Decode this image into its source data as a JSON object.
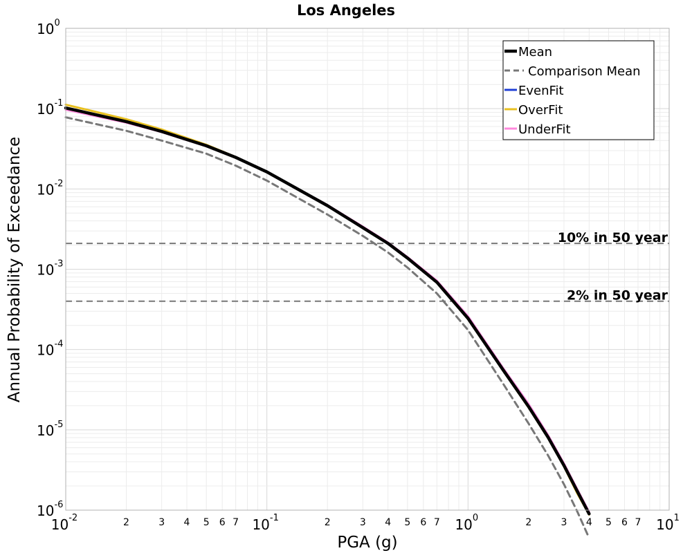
{
  "chart_data": {
    "type": "line",
    "title": "Los Angeles",
    "xlabel": "PGA (g)",
    "ylabel": "Annual Probability of Exceedance",
    "x_scale": "log",
    "y_scale": "log",
    "xlim": [
      0.01,
      10
    ],
    "ylim": [
      1e-06,
      1
    ],
    "grid": true,
    "legend_position": "top-right",
    "x_major_ticks": [
      {
        "value": 0.01,
        "base": "10",
        "exp": "-2"
      },
      {
        "value": 0.1,
        "base": "10",
        "exp": "-1"
      },
      {
        "value": 1,
        "base": "10",
        "exp": "0"
      },
      {
        "value": 10,
        "base": "10",
        "exp": "1"
      }
    ],
    "y_major_ticks": [
      {
        "value": 1,
        "base": "10",
        "exp": "0"
      },
      {
        "value": 0.1,
        "base": "10",
        "exp": "-1"
      },
      {
        "value": 0.01,
        "base": "10",
        "exp": "-2"
      },
      {
        "value": 0.001,
        "base": "10",
        "exp": "-3"
      },
      {
        "value": 0.0001,
        "base": "10",
        "exp": "-4"
      },
      {
        "value": 1e-05,
        "base": "10",
        "exp": "-5"
      },
      {
        "value": 1e-06,
        "base": "10",
        "exp": "-6"
      }
    ],
    "x_minor_tick_labels": [
      "2",
      "3",
      "4",
      "5",
      "6",
      "7"
    ],
    "reference_lines": [
      {
        "label": "10% in 50 year",
        "y": 0.0021,
        "color": "#777777"
      },
      {
        "label": "2% in 50 year",
        "y": 0.0004,
        "color": "#777777"
      }
    ],
    "series": [
      {
        "name": "UnderFit",
        "color": "#ff88dd",
        "width": 3,
        "dash": "solid",
        "x": [
          0.01,
          0.02,
          0.03,
          0.05,
          0.07,
          0.1,
          0.2,
          0.3,
          0.4,
          0.5,
          0.7,
          1.0,
          1.5,
          2.0,
          2.5,
          3.0,
          3.5,
          4.0
        ],
        "y": [
          0.097,
          0.067,
          0.051,
          0.034,
          0.0245,
          0.0163,
          0.0063,
          0.0034,
          0.00215,
          0.00142,
          0.00072,
          0.00026,
          5.8e-05,
          2.1e-05,
          8.6e-06,
          3.8e-06,
          1.8e-06,
          9.5e-07
        ]
      },
      {
        "name": "EvenFit",
        "color": "#1f3fd6",
        "width": 3,
        "dash": "solid",
        "x": [
          0.01,
          0.02,
          0.03,
          0.05,
          0.07,
          0.1,
          0.2,
          0.3,
          0.4,
          0.5,
          0.7,
          1.0,
          1.5,
          2.0,
          2.5,
          3.0,
          3.5,
          4.0
        ],
        "y": [
          0.102,
          0.069,
          0.052,
          0.0345,
          0.0247,
          0.0163,
          0.0062,
          0.0033,
          0.0021,
          0.00138,
          0.00069,
          0.000245,
          5.5e-05,
          1.95e-05,
          8.1e-06,
          3.6e-06,
          1.7e-06,
          9e-07
        ]
      },
      {
        "name": "OverFit",
        "color": "#e8c020",
        "width": 3,
        "dash": "solid",
        "x": [
          0.01,
          0.02,
          0.03,
          0.05,
          0.07,
          0.1,
          0.2,
          0.3,
          0.4,
          0.5,
          0.7,
          1.0,
          1.5,
          2.0,
          2.5,
          3.0,
          3.5,
          4.0
        ],
        "y": [
          0.112,
          0.074,
          0.055,
          0.0355,
          0.025,
          0.0163,
          0.0062,
          0.0033,
          0.00208,
          0.00137,
          0.00068,
          0.00024,
          5.4e-05,
          1.9e-05,
          7.9e-06,
          3.5e-06,
          1.6e-06,
          8.8e-07
        ]
      },
      {
        "name": "Mean",
        "color": "#000000",
        "width": 4.5,
        "dash": "solid",
        "x": [
          0.01,
          0.02,
          0.03,
          0.05,
          0.07,
          0.1,
          0.2,
          0.3,
          0.4,
          0.5,
          0.7,
          1.0,
          1.5,
          2.0,
          2.5,
          3.0,
          3.5,
          4.0
        ],
        "y": [
          0.102,
          0.069,
          0.052,
          0.0345,
          0.0247,
          0.0163,
          0.0062,
          0.0033,
          0.0021,
          0.00138,
          0.00069,
          0.000245,
          5.5e-05,
          1.95e-05,
          8.1e-06,
          3.6e-06,
          1.7e-06,
          9e-07
        ]
      },
      {
        "name": "Comparison Mean",
        "color": "#777777",
        "width": 3,
        "dash": "dashed",
        "x": [
          0.01,
          0.02,
          0.03,
          0.05,
          0.07,
          0.1,
          0.2,
          0.3,
          0.4,
          0.5,
          0.7,
          1.0,
          1.5,
          2.0,
          2.5,
          3.0,
          3.5,
          4.0
        ],
        "y": [
          0.078,
          0.053,
          0.04,
          0.0275,
          0.0195,
          0.0127,
          0.0048,
          0.0026,
          0.00162,
          0.00105,
          0.0005,
          0.000175,
          3.7e-05,
          1.2e-05,
          4.8e-06,
          2.1e-06,
          9.5e-07,
          4.5e-07
        ]
      }
    ],
    "legend": [
      {
        "name": "Mean",
        "color": "#000000",
        "width": 4.5,
        "dash": "solid"
      },
      {
        "name": "Comparison Mean",
        "color": "#777777",
        "width": 3,
        "dash": "dashed"
      },
      {
        "name": "EvenFit",
        "color": "#1f3fd6",
        "width": 3,
        "dash": "solid"
      },
      {
        "name": "OverFit",
        "color": "#e8c020",
        "width": 3,
        "dash": "solid"
      },
      {
        "name": "UnderFit",
        "color": "#ff88dd",
        "width": 3,
        "dash": "solid"
      }
    ]
  }
}
